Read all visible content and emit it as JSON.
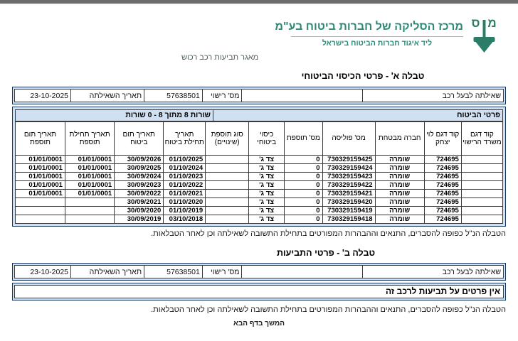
{
  "brand": {
    "title": "מרכז הסליקה של חברות ביטוח בע\"מ",
    "subtitle": "ליד איגוד חברות הביטוח בישראל",
    "tagline": "מאגר תביעות רכב רכוש",
    "logo": "insurance-clearing-center-emblem",
    "brand_color": "#2E8A78",
    "logo_color": "#2B7D68"
  },
  "colors": {
    "band_blue": "#CFE0F2",
    "frame_border": "#17375D"
  },
  "table_a": {
    "title": "טבלה א' - פרטי הכיסוי הביטוחי",
    "query": {
      "owner_label": "שאילתה לבעל רכב",
      "owner_value": "",
      "license_label": "מס' רישוי",
      "license_value": "57638501",
      "date_label": "תאריך השאילתה",
      "date_value": "23-10-2025"
    },
    "band": {
      "section_title": "פרטי הביטוח",
      "rows_counter": "שורות 8 מתוך 8 - 0 שורות"
    },
    "columns": [
      "קוד דגם משרד הרישוי",
      "קוד דגם לוי יצחק",
      "חברה מבטחת",
      "מס' פוליסה",
      "מס' תוספת",
      "כיסוי ביטוחי",
      "סוג תוספת (שינויים)",
      "תאריך תחילת ביטוח",
      "תאריך תום ביטוח",
      "תאריך תחילת תוספת",
      "תאריך תום תוספת"
    ],
    "rows": [
      [
        "",
        "724695",
        "שומרה",
        "730329159425",
        "0",
        "צד ג'",
        "",
        "01/10/2025",
        "30/09/2026",
        "01/01/0001",
        "01/01/0001"
      ],
      [
        "",
        "724695",
        "שומרה",
        "730329159424",
        "0",
        "צד ג'",
        "",
        "01/10/2024",
        "30/09/2025",
        "01/01/0001",
        "01/01/0001"
      ],
      [
        "",
        "724695",
        "שומרה",
        "730329159423",
        "0",
        "צד ג'",
        "",
        "01/10/2023",
        "30/09/2024",
        "01/01/0001",
        "01/01/0001"
      ],
      [
        "",
        "724695",
        "שומרה",
        "730329159422",
        "0",
        "צד ג'",
        "",
        "01/10/2022",
        "30/09/2023",
        "01/01/0001",
        "01/01/0001"
      ],
      [
        "",
        "724695",
        "שומרה",
        "730329159421",
        "0",
        "צד ג'",
        "",
        "01/10/2021",
        "30/09/2022",
        "01/01/0001",
        "01/01/0001"
      ],
      [
        "",
        "724695",
        "שומרה",
        "730329159420",
        "0",
        "צד ג'",
        "",
        "01/10/2020",
        "30/09/2021",
        "",
        ""
      ],
      [
        "",
        "724695",
        "שומרה",
        "730329159419",
        "0",
        "צד ג'",
        "",
        "01/10/2019",
        "30/09/2020",
        "",
        ""
      ],
      [
        "",
        "724695",
        "שומרה",
        "730329159418",
        "0",
        "צד ג'",
        "",
        "03/10/2018",
        "30/09/2019",
        "",
        ""
      ]
    ],
    "footnote": "הטבלה הנ\"ל כפופה להסברים, התנאים וההבהרות המפורטים בתחילת התשובה לשאילתה וכן לאחר הטבלאות."
  },
  "table_b": {
    "title": "טבלה ב' - פרטי התביעות",
    "query": {
      "owner_label": "שאילתה לבעל רכב",
      "owner_value": "",
      "license_label": "מס' רישוי",
      "license_value": "57638501",
      "date_label": "תאריך השאילתה",
      "date_value": "23-10-2025"
    },
    "message": "אין פרטים על תביעות לרכב זה",
    "footnote": "הטבלה הנ\"ל כפופה להסברים, התנאים וההבהרות המפורטים בתחילת התשובה לשאילתה וכן לאחר הטבלאות."
  },
  "footer": {
    "continued": "המשך בדף הבא"
  }
}
